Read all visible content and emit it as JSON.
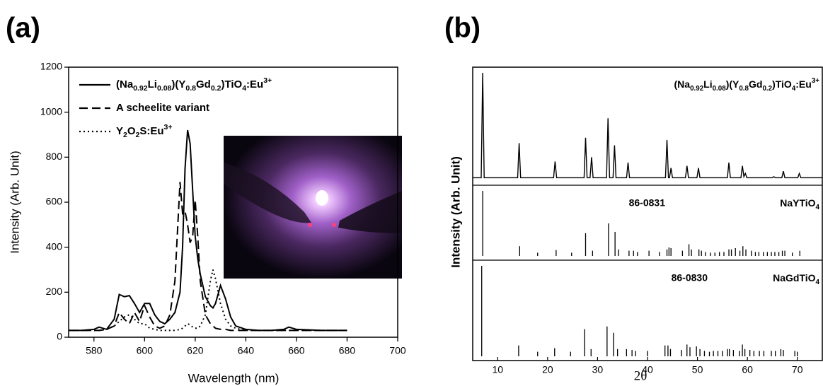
{
  "chart_data": [
    {
      "type": "line",
      "label": "(a)",
      "xlabel": "Wavelength (nm)",
      "ylabel": "Intensity (Arb. Unit)",
      "xlim": [
        570,
        700
      ],
      "ylim": [
        0,
        1200
      ],
      "xticks": [
        580,
        600,
        620,
        640,
        660,
        680,
        700
      ],
      "yticks": [
        0,
        200,
        400,
        600,
        800,
        1000,
        1200
      ],
      "x": [
        570,
        575,
        580,
        582,
        585,
        588,
        590,
        592,
        594,
        596,
        598,
        600,
        602,
        604,
        606,
        608,
        610,
        612,
        614,
        615,
        616,
        617,
        618,
        619,
        620,
        621,
        622,
        624,
        626,
        627,
        628,
        630,
        632,
        634,
        636,
        640,
        645,
        650,
        655,
        657,
        660,
        670,
        680
      ],
      "series": [
        {
          "name": "(Na0.92Li0.08)(Y0.8Gd0.2)TiO4:Eu3+",
          "color": "#000000",
          "style": "solid",
          "values": [
            30,
            30,
            35,
            45,
            35,
            80,
            190,
            180,
            185,
            150,
            110,
            150,
            150,
            100,
            70,
            60,
            80,
            110,
            200,
            400,
            750,
            920,
            860,
            650,
            450,
            350,
            280,
            180,
            140,
            130,
            150,
            230,
            170,
            90,
            50,
            35,
            30,
            30,
            35,
            45,
            35,
            30,
            30
          ]
        },
        {
          "name": "A scheelite variant",
          "color": "#000000",
          "style": "dashed",
          "values": [
            30,
            30,
            30,
            30,
            35,
            50,
            110,
            80,
            60,
            110,
            70,
            140,
            90,
            50,
            40,
            50,
            100,
            250,
            690,
            550,
            560,
            500,
            420,
            450,
            610,
            450,
            250,
            100,
            60,
            50,
            40,
            35,
            35,
            30,
            30,
            30,
            30,
            30,
            30,
            30,
            30,
            30,
            30
          ]
        },
        {
          "name": "Y2O2S:Eu3+",
          "color": "#000000",
          "style": "dotted",
          "values": [
            30,
            30,
            30,
            30,
            35,
            50,
            70,
            90,
            100,
            80,
            60,
            60,
            40,
            35,
            30,
            30,
            30,
            30,
            35,
            40,
            50,
            60,
            55,
            45,
            40,
            40,
            50,
            100,
            250,
            300,
            260,
            150,
            80,
            50,
            40,
            30,
            30,
            30,
            30,
            30,
            30,
            30,
            30
          ]
        }
      ]
    },
    {
      "type": "stacked",
      "label": "(b)",
      "xlabel": "2θ",
      "ylabel": "Intensity (Arb. Unit)",
      "xlim": [
        5,
        75
      ],
      "xticks": [
        10,
        20,
        30,
        40,
        50,
        60,
        70
      ],
      "panels": [
        {
          "type": "line",
          "name": "(Na0.92Li0.08)(Y0.8Gd0.2)TiO4:Eu3+",
          "ylim": [
            0,
            100
          ],
          "color": "#000000",
          "x": [
            5,
            6.7,
            7.0,
            7.3,
            14.0,
            14.3,
            14.6,
            21.2,
            21.5,
            21.8,
            27.3,
            27.6,
            27.9,
            28.5,
            28.8,
            29.1,
            31.8,
            32.1,
            32.4,
            33.1,
            33.4,
            33.7,
            35.8,
            36.1,
            36.4,
            43.6,
            43.9,
            44.2,
            44.4,
            44.7,
            45.0,
            47.6,
            47.9,
            48.2,
            49.9,
            50.2,
            50.5,
            56.0,
            56.3,
            56.6,
            58.7,
            59.0,
            59.3,
            59.6,
            59.9,
            65.0,
            65.3,
            65.6,
            66.9,
            67.2,
            67.5,
            70.1,
            70.4,
            70.7,
            72.4,
            72.7,
            73.0,
            75
          ],
          "values": [
            3,
            3,
            100,
            3,
            3,
            35,
            3,
            3,
            18,
            3,
            3,
            40,
            3,
            3,
            22,
            3,
            3,
            58,
            3,
            3,
            33,
            3,
            3,
            17,
            3,
            3,
            38,
            3,
            3,
            12,
            3,
            3,
            14,
            3,
            3,
            12,
            3,
            3,
            17,
            3,
            3,
            14,
            4,
            7,
            3,
            3,
            4,
            3,
            3,
            9,
            3,
            3,
            7,
            3,
            3,
            3,
            3,
            3
          ]
        },
        {
          "type": "stem",
          "code": "86-0831",
          "name": "NaYTiO4",
          "ylim": [
            0,
            100
          ],
          "color": "#000000",
          "x": [
            7.0,
            14.4,
            18.0,
            21.7,
            24.8,
            27.6,
            29.0,
            32.2,
            33.5,
            34.2,
            36.3,
            37.2,
            38.0,
            40.3,
            42.4,
            43.9,
            44.3,
            44.7,
            47.0,
            48.3,
            48.8,
            50.3,
            50.8,
            51.6,
            52.6,
            53.5,
            54.4,
            55.3,
            56.3,
            56.8,
            57.6,
            58.5,
            59.1,
            59.7,
            60.8,
            61.6,
            62.3,
            63.2,
            64.0,
            64.8,
            65.5,
            66.3,
            67.0,
            67.5,
            69.0,
            70.5
          ],
          "values": [
            100,
            15,
            5,
            9,
            5,
            35,
            8,
            50,
            37,
            10,
            8,
            8,
            6,
            8,
            6,
            10,
            13,
            12,
            8,
            18,
            10,
            10,
            8,
            6,
            5,
            5,
            6,
            6,
            10,
            10,
            12,
            8,
            15,
            10,
            8,
            6,
            6,
            6,
            6,
            6,
            6,
            6,
            8,
            8,
            5,
            8
          ]
        },
        {
          "type": "stem",
          "code": "86-0830",
          "name": "NaGdTiO4",
          "ylim": [
            0,
            100
          ],
          "color": "#000000",
          "x": [
            6.8,
            14.2,
            18.0,
            21.4,
            24.6,
            27.4,
            28.7,
            31.9,
            33.2,
            34.0,
            35.8,
            36.9,
            37.6,
            40.0,
            43.5,
            44.1,
            44.6,
            46.8,
            47.9,
            48.5,
            49.8,
            50.5,
            51.4,
            52.4,
            53.2,
            54.1,
            55.0,
            56.0,
            56.4,
            57.2,
            58.4,
            59.0,
            59.5,
            60.5,
            61.3,
            62.4,
            63.3,
            64.8,
            65.6,
            66.7,
            67.2,
            69.5,
            70.0
          ],
          "values": [
            100,
            12,
            5,
            9,
            5,
            30,
            8,
            33,
            26,
            8,
            8,
            7,
            6,
            6,
            12,
            12,
            8,
            7,
            13,
            10,
            11,
            8,
            6,
            5,
            6,
            6,
            6,
            8,
            8,
            7,
            6,
            13,
            8,
            7,
            6,
            6,
            6,
            6,
            6,
            8,
            7,
            6,
            5
          ]
        }
      ]
    }
  ]
}
